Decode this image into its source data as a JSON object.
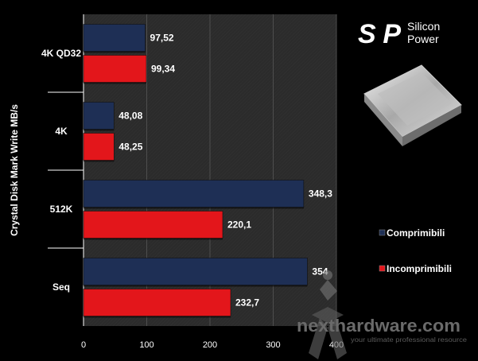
{
  "chart_data": {
    "type": "bar",
    "orientation": "horizontal",
    "ylabel": "Crystal Disk Mark Write MB/s",
    "categories": [
      "4K QD32",
      "4K",
      "512K",
      "Seq"
    ],
    "series": [
      {
        "name": "Comprimibili",
        "color": "#1e2f55",
        "values": [
          97.52,
          48.08,
          348.3,
          354
        ],
        "labels": [
          "97,52",
          "48,08",
          "348,3",
          "354"
        ]
      },
      {
        "name": "Incomprimibili",
        "color": "#e3161b",
        "values": [
          99.34,
          48.25,
          220.1,
          232.7
        ],
        "labels": [
          "99,34",
          "48,25",
          "220,1",
          "232,7"
        ]
      }
    ],
    "xlim": [
      0,
      400
    ],
    "xticks": [
      "0",
      "100",
      "200",
      "300",
      "400"
    ],
    "grid": true,
    "legend": "right"
  },
  "brand": {
    "mark": "SP",
    "line1": "Silicon",
    "line2": "Power"
  },
  "watermark": {
    "name": "nexthardware.com",
    "tagline": "your ultimate professional resource"
  }
}
